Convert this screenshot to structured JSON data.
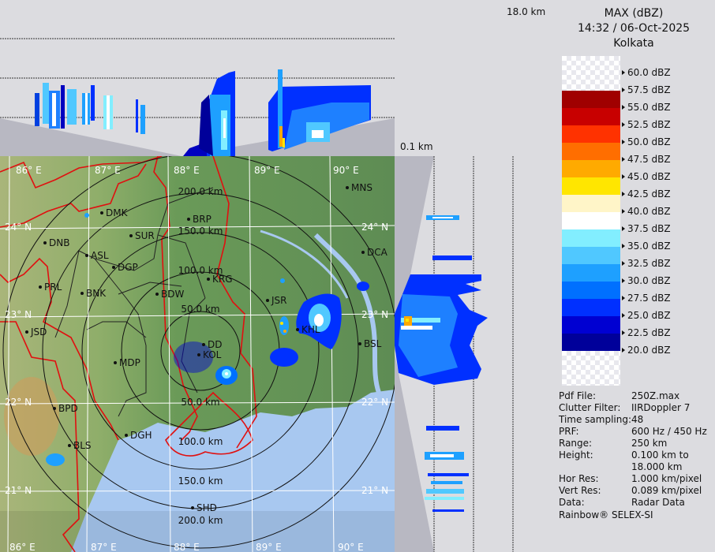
{
  "header": {
    "product": "MAX (dBZ)",
    "datetime": "14:32 / 06-Oct-2025",
    "site": "Kolkata"
  },
  "profile": {
    "top_height": "18.0 km",
    "bottom_height": "0.1 km"
  },
  "legend": {
    "labels": [
      "60.0 dBZ",
      "57.5 dBZ",
      "55.0 dBZ",
      "52.5 dBZ",
      "50.0 dBZ",
      "47.5 dBZ",
      "45.0 dBZ",
      "42.5 dBZ",
      "40.0 dBZ",
      "37.5 dBZ",
      "35.0 dBZ",
      "32.5 dBZ",
      "30.0 dBZ",
      "27.5 dBZ",
      "25.0 dBZ",
      "22.5 dBZ",
      "20.0 dBZ"
    ],
    "colors": [
      "#a00000",
      "#c80000",
      "#ff3200",
      "#ff6e00",
      "#ffaa00",
      "#ffe600",
      "#fff5c8",
      "#ffffff",
      "#82eeff",
      "#50c8ff",
      "#1ea0ff",
      "#0070ff",
      "#0030ff",
      "#0000d2",
      "#00009a"
    ]
  },
  "info": [
    {
      "key": "Pdf File:",
      "value": "250Z.max"
    },
    {
      "key": "Clutter Filter:",
      "value": "IIRDoppler 7"
    },
    {
      "key": "Time sampling:",
      "value": "48"
    },
    {
      "key": "PRF:",
      "value": "600 Hz / 450 Hz"
    },
    {
      "key": "Range:",
      "value": "250 km"
    },
    {
      "key": "Height:",
      "value": "0.100 km to"
    },
    {
      "key": "",
      "value": "18.000 km"
    },
    {
      "key": "Hor Res:",
      "value": "1.000 km/pixel"
    },
    {
      "key": "Vert Res:",
      "value": "0.089 km/pixel"
    },
    {
      "key": "Data:",
      "value": "Radar Data"
    }
  ],
  "credit": "Rainbow® SELEX-SI",
  "map": {
    "lon_labels": [
      "86° E",
      "87° E",
      "88° E",
      "89° E",
      "90° E"
    ],
    "lat_labels": [
      "24° N",
      "23° N",
      "22° N",
      "21° N"
    ],
    "ring_labels": [
      "50.0 km",
      "100.0 km",
      "150.0 km",
      "200.0 km"
    ],
    "cities": [
      "MNS",
      "DMK",
      "BRP",
      "SUR",
      "DNB",
      "ASL",
      "DGP",
      "DCA",
      "KRG",
      "PRL",
      "BNK",
      "BDW",
      "JSR",
      "KHL",
      "JSD",
      "BSL",
      "DD",
      "KOL",
      "MDP",
      "BPD",
      "DGH",
      "BLS",
      "SHD"
    ]
  },
  "colors": {
    "land": "#6e9e5a",
    "sea": "#a8c8f0",
    "border": "#e01010",
    "ground": "#b8b8c2"
  }
}
